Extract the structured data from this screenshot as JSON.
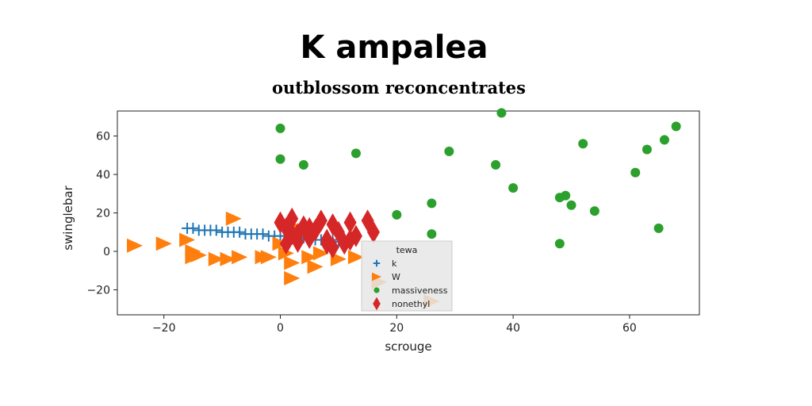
{
  "chart_data": {
    "type": "scatter",
    "suptitle": "K ampalea",
    "title": "outblossom reconcentrates",
    "xlabel": "scrouge",
    "ylabel": "swinglebar",
    "xlim": [
      -28,
      72
    ],
    "ylim": [
      -33,
      73
    ],
    "xticks": [
      -20,
      0,
      20,
      40,
      60
    ],
    "yticks": [
      -20,
      0,
      20,
      40,
      60
    ],
    "grid": false,
    "legend": {
      "title": "tewa",
      "placement": "lower-center"
    },
    "colors": {
      "k": "#1f77b4",
      "W": "#ff7f0e",
      "massiveness": "#2ca02c",
      "nonethyl": "#d62728"
    },
    "series": [
      {
        "name": "k",
        "marker": "plus",
        "x": [
          -16,
          -15,
          -14,
          -13,
          -12,
          -11,
          -10,
          -9,
          -8,
          -7,
          -6,
          -5,
          -4,
          -3,
          -2,
          -1,
          0,
          1,
          2,
          3,
          4,
          5,
          6,
          7,
          8,
          9,
          10,
          11,
          12
        ],
        "y": [
          12,
          12,
          11,
          11,
          11,
          11,
          10,
          10,
          10,
          10,
          9,
          9,
          9,
          9,
          8,
          8,
          8,
          8,
          7,
          7,
          7,
          7,
          6,
          6,
          6,
          6,
          5,
          5,
          5
        ]
      },
      {
        "name": "W",
        "marker": "triangle-right",
        "x": [
          -25,
          -20,
          -16,
          -15,
          -14,
          -15,
          -11,
          -9,
          -8,
          -3,
          -2,
          0,
          1,
          2,
          2,
          3,
          5,
          6,
          7,
          10,
          13,
          17,
          26,
          -7
        ],
        "y": [
          3,
          4,
          6,
          0,
          -2,
          -3,
          -4,
          -4,
          17,
          -3,
          -3,
          4,
          -1,
          -14,
          -6,
          12,
          -3,
          -8,
          -1,
          -4,
          -3,
          -16,
          -26,
          -3
        ]
      },
      {
        "name": "massiveness",
        "marker": "circle",
        "x": [
          0,
          0,
          4,
          13,
          20,
          26,
          26,
          29,
          37,
          38,
          40,
          48,
          48,
          49,
          50,
          52,
          54,
          61,
          63,
          65,
          66,
          68
        ],
        "y": [
          64,
          48,
          45,
          51,
          19,
          25,
          9,
          52,
          45,
          72,
          33,
          4,
          28,
          29,
          24,
          56,
          21,
          41,
          53,
          12,
          58,
          65
        ]
      },
      {
        "name": "nonethyl",
        "marker": "diamond",
        "x": [
          0,
          1,
          2,
          3,
          3,
          4,
          5,
          6,
          7,
          8,
          9,
          10,
          11,
          12,
          13,
          15,
          16,
          1,
          5,
          9,
          12,
          2,
          8
        ],
        "y": [
          15,
          12,
          17,
          9,
          5,
          13,
          7,
          11,
          16,
          6,
          14,
          10,
          4,
          15,
          8,
          16,
          10,
          4,
          12,
          2,
          6,
          9,
          4
        ]
      }
    ]
  }
}
